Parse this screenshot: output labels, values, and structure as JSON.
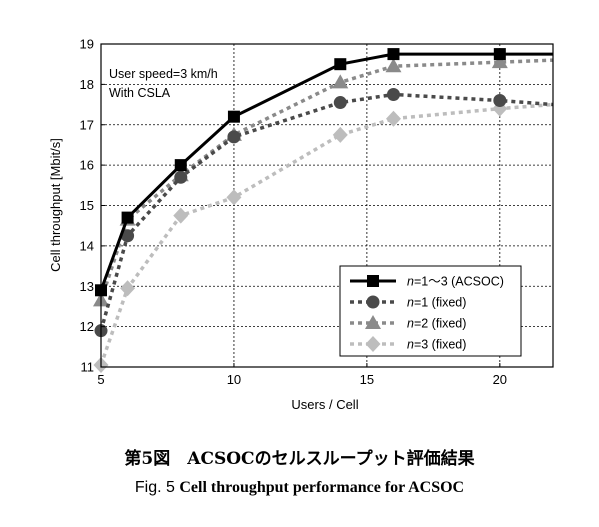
{
  "chart_data": {
    "type": "line",
    "xlabel": "Users / Cell",
    "ylabel": "Cell throughput [Mbit/s]",
    "xlim": [
      5,
      22
    ],
    "ylim": [
      11,
      19
    ],
    "xticks": [
      "5",
      "10",
      "15",
      "20"
    ],
    "yticks": [
      "11",
      "12",
      "13",
      "14",
      "15",
      "16",
      "17",
      "18",
      "19"
    ],
    "grid": true,
    "legend_position": "lower-right",
    "annotations": [
      "User speed=3 km/h",
      "With CSLA"
    ],
    "series": [
      {
        "name": "n=1〜3 (ACSOC)",
        "name_parts": {
          "var": "n",
          "rest": "=1〜3 (ACSOC)"
        },
        "marker": "square",
        "line": "solid",
        "color": "#000000",
        "x": [
          5,
          6,
          8,
          10,
          14,
          16,
          20,
          22
        ],
        "y": [
          12.9,
          14.7,
          16.0,
          17.2,
          18.5,
          18.75,
          18.75,
          18.75
        ],
        "marker_x": [
          5,
          6,
          8,
          10,
          14,
          16,
          20
        ]
      },
      {
        "name": "n=1 (fixed)",
        "name_parts": {
          "var": "n",
          "rest": "=1 (fixed)"
        },
        "marker": "circle",
        "line": "dotted",
        "color": "#4a4a4a",
        "x": [
          5,
          6,
          8,
          10,
          14,
          16,
          20,
          22
        ],
        "y": [
          11.9,
          14.25,
          15.7,
          16.7,
          17.55,
          17.75,
          17.6,
          17.5
        ],
        "marker_x": [
          5,
          6,
          8,
          10,
          14,
          16,
          20
        ]
      },
      {
        "name": "n=2 (fixed)",
        "name_parts": {
          "var": "n",
          "rest": "=2 (fixed)"
        },
        "marker": "triangle",
        "line": "dotted",
        "color": "#8a8a8a",
        "x": [
          5,
          6,
          8,
          10,
          14,
          16,
          20,
          22
        ],
        "y": [
          12.65,
          14.65,
          15.75,
          16.75,
          18.05,
          18.45,
          18.55,
          18.6
        ],
        "marker_x": [
          5,
          6,
          8,
          10,
          14,
          16,
          20
        ]
      },
      {
        "name": "n=3 (fixed)",
        "name_parts": {
          "var": "n",
          "rest": "=3 (fixed)"
        },
        "marker": "diamond",
        "line": "dotted",
        "color": "#bdbdbd",
        "x": [
          5,
          6,
          8,
          10,
          14,
          16,
          20,
          22
        ],
        "y": [
          11.05,
          12.95,
          14.75,
          15.2,
          16.75,
          17.15,
          17.4,
          17.5
        ],
        "marker_x": [
          5,
          6,
          8,
          10,
          14,
          16,
          20
        ]
      }
    ]
  },
  "caption": {
    "jp": "第5図　ACSOCのセルスループット評価結果",
    "en_fig": "Fig. 5",
    "en_text": "Cell throughput performance for ACSOC"
  }
}
